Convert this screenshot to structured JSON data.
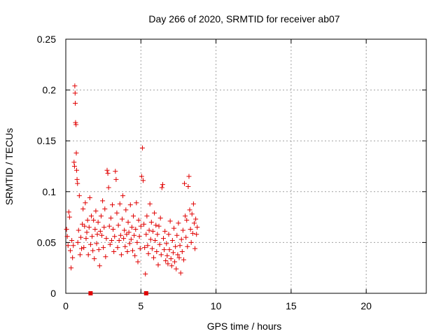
{
  "chart_data": {
    "type": "scatter",
    "title": "Day 266 of 2020, SRMTID for receiver ab07",
    "xlabel": "GPS time / hours",
    "ylabel": "SRMTID / TECUs",
    "xlim": [
      0,
      24
    ],
    "ylim": [
      0,
      0.25
    ],
    "x_ticks": [
      0,
      5,
      10,
      15,
      20
    ],
    "x_tick_labels": [
      "0",
      "5",
      "10",
      "15",
      "20"
    ],
    "y_ticks": [
      0,
      0.05,
      0.1,
      0.15,
      0.2,
      0.25
    ],
    "y_tick_labels": [
      "0",
      "0.05",
      "0.1",
      "0.15",
      "0.2",
      "0.25"
    ],
    "grid": true,
    "marker": "+",
    "color": "#e00000",
    "series": [
      {
        "name": "",
        "points": [
          [
            0.05,
            0.063
          ],
          [
            0.1,
            0.056
          ],
          [
            0.15,
            0.047
          ],
          [
            0.2,
            0.08
          ],
          [
            0.25,
            0.075
          ],
          [
            0.3,
            0.042
          ],
          [
            0.35,
            0.025
          ],
          [
            0.4,
            0.052
          ],
          [
            0.45,
            0.035
          ],
          [
            0.5,
            0.047
          ],
          [
            0.55,
            0.129
          ],
          [
            0.58,
            0.125
          ],
          [
            0.6,
            0.204
          ],
          [
            0.62,
            0.197
          ],
          [
            0.63,
            0.187
          ],
          [
            0.65,
            0.168
          ],
          [
            0.68,
            0.166
          ],
          [
            0.7,
            0.138
          ],
          [
            0.72,
            0.121
          ],
          [
            0.75,
            0.112
          ],
          [
            0.78,
            0.108
          ],
          [
            0.8,
            0.05
          ],
          [
            0.85,
            0.062
          ],
          [
            0.9,
            0.096
          ],
          [
            0.95,
            0.038
          ],
          [
            1.0,
            0.055
          ],
          [
            1.05,
            0.044
          ],
          [
            1.1,
            0.068
          ],
          [
            1.15,
            0.083
          ],
          [
            1.2,
            0.045
          ],
          [
            1.25,
            0.066
          ],
          [
            1.3,
            0.089
          ],
          [
            1.35,
            0.054
          ],
          [
            1.4,
            0.06
          ],
          [
            1.45,
            0.072
          ],
          [
            1.5,
            0.038
          ],
          [
            1.55,
            0.065
          ],
          [
            1.6,
            0.094
          ],
          [
            1.65,
            0.048
          ],
          [
            1.7,
            0.076
          ],
          [
            1.75,
            0.056
          ],
          [
            1.8,
            0.042
          ],
          [
            1.85,
            0.072
          ],
          [
            1.9,
            0.034
          ],
          [
            1.95,
            0.063
          ],
          [
            2.0,
            0.081
          ],
          [
            2.05,
            0.049
          ],
          [
            2.1,
            0.058
          ],
          [
            2.15,
            0.07
          ],
          [
            2.2,
            0.043
          ],
          [
            2.25,
            0.027
          ],
          [
            2.3,
            0.061
          ],
          [
            2.35,
            0.076
          ],
          [
            2.4,
            0.057
          ],
          [
            2.45,
            0.091
          ],
          [
            2.5,
            0.045
          ],
          [
            2.55,
            0.065
          ],
          [
            2.6,
            0.083
          ],
          [
            2.65,
            0.036
          ],
          [
            2.7,
            0.054
          ],
          [
            2.75,
            0.121
          ],
          [
            2.8,
            0.118
          ],
          [
            2.85,
            0.104
          ],
          [
            2.9,
            0.066
          ],
          [
            2.95,
            0.048
          ],
          [
            3.0,
            0.074
          ],
          [
            3.05,
            0.052
          ],
          [
            3.1,
            0.087
          ],
          [
            3.15,
            0.063
          ],
          [
            3.2,
            0.041
          ],
          [
            3.25,
            0.056
          ],
          [
            3.3,
            0.12
          ],
          [
            3.35,
            0.112
          ],
          [
            3.4,
            0.079
          ],
          [
            3.45,
            0.045
          ],
          [
            3.5,
            0.067
          ],
          [
            3.55,
            0.052
          ],
          [
            3.6,
            0.088
          ],
          [
            3.65,
            0.057
          ],
          [
            3.7,
            0.038
          ],
          [
            3.75,
            0.073
          ],
          [
            3.8,
            0.096
          ],
          [
            3.85,
            0.054
          ],
          [
            3.9,
            0.062
          ],
          [
            3.95,
            0.046
          ],
          [
            4.0,
            0.082
          ],
          [
            4.05,
            0.058
          ],
          [
            4.1,
            0.041
          ],
          [
            4.15,
            0.07
          ],
          [
            4.2,
            0.06
          ],
          [
            4.25,
            0.049
          ],
          [
            4.3,
            0.087
          ],
          [
            4.35,
            0.053
          ],
          [
            4.4,
            0.065
          ],
          [
            4.45,
            0.042
          ],
          [
            4.5,
            0.076
          ],
          [
            4.55,
            0.057
          ],
          [
            4.6,
            0.037
          ],
          [
            4.65,
            0.063
          ],
          [
            4.7,
            0.089
          ],
          [
            4.75,
            0.05
          ],
          [
            4.8,
            0.031
          ],
          [
            4.85,
            0.072
          ],
          [
            4.9,
            0.056
          ],
          [
            4.95,
            0.044
          ],
          [
            5.0,
            0.066
          ],
          [
            5.05,
            0.115
          ],
          [
            5.1,
            0.143
          ],
          [
            5.15,
            0.111
          ],
          [
            5.2,
            0.068
          ],
          [
            5.25,
            0.045
          ],
          [
            5.3,
            0.019
          ],
          [
            5.35,
            0.058
          ],
          [
            5.4,
            0.076
          ],
          [
            5.45,
            0.047
          ],
          [
            5.5,
            0.039
          ],
          [
            5.55,
            0.062
          ],
          [
            5.6,
            0.088
          ],
          [
            5.65,
            0.053
          ],
          [
            5.7,
            0.07
          ],
          [
            5.75,
            0.044
          ],
          [
            5.8,
            0.061
          ],
          [
            5.85,
            0.035
          ],
          [
            5.9,
            0.079
          ],
          [
            5.95,
            0.052
          ],
          [
            6.0,
            0.067
          ],
          [
            6.05,
            0.041
          ],
          [
            6.1,
            0.058
          ],
          [
            6.15,
            0.028
          ],
          [
            6.2,
            0.066
          ],
          [
            6.25,
            0.048
          ],
          [
            6.3,
            0.074
          ],
          [
            6.35,
            0.038
          ],
          [
            6.4,
            0.104
          ],
          [
            6.45,
            0.107
          ],
          [
            6.5,
            0.054
          ],
          [
            6.55,
            0.043
          ],
          [
            6.6,
            0.061
          ],
          [
            6.65,
            0.032
          ],
          [
            6.7,
            0.049
          ],
          [
            6.75,
            0.037
          ],
          [
            6.8,
            0.029
          ],
          [
            6.85,
            0.058
          ],
          [
            6.9,
            0.043
          ],
          [
            6.95,
            0.071
          ],
          [
            7.0,
            0.034
          ],
          [
            7.05,
            0.027
          ],
          [
            7.1,
            0.052
          ],
          [
            7.15,
            0.04
          ],
          [
            7.2,
            0.064
          ],
          [
            7.25,
            0.031
          ],
          [
            7.3,
            0.046
          ],
          [
            7.35,
            0.024
          ],
          [
            7.4,
            0.057
          ],
          [
            7.45,
            0.038
          ],
          [
            7.5,
            0.069
          ],
          [
            7.55,
            0.035
          ],
          [
            7.6,
            0.047
          ],
          [
            7.65,
            0.02
          ],
          [
            7.7,
            0.053
          ],
          [
            7.75,
            0.041
          ],
          [
            7.8,
            0.062
          ],
          [
            7.85,
            0.033
          ],
          [
            7.9,
            0.108
          ],
          [
            7.95,
            0.076
          ],
          [
            8.0,
            0.055
          ],
          [
            8.05,
            0.072
          ],
          [
            8.1,
            0.046
          ],
          [
            8.15,
            0.105
          ],
          [
            8.2,
            0.115
          ],
          [
            8.25,
            0.082
          ],
          [
            8.3,
            0.063
          ],
          [
            8.35,
            0.05
          ],
          [
            8.4,
            0.078
          ],
          [
            8.45,
            0.059
          ],
          [
            8.5,
            0.088
          ],
          [
            8.55,
            0.069
          ],
          [
            8.6,
            0.044
          ],
          [
            8.65,
            0.073
          ],
          [
            8.7,
            0.058
          ],
          [
            8.75,
            0.065
          ]
        ]
      }
    ],
    "lower_markers": [
      {
        "x": 1.65,
        "y": 0
      },
      {
        "x": 5.35,
        "y": 0
      }
    ]
  }
}
